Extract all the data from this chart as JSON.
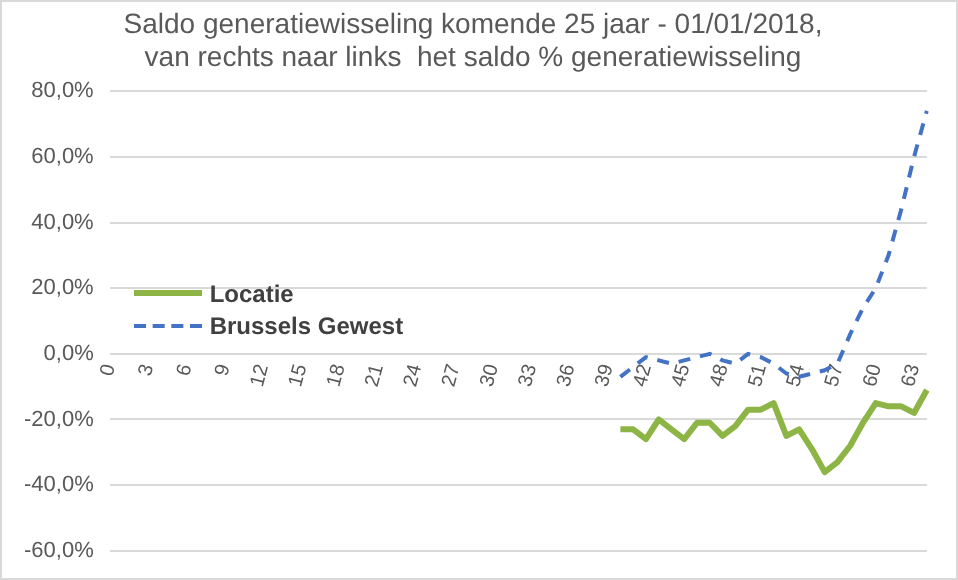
{
  "chart_data": {
    "type": "line",
    "title": "Saldo generatiewisseling komende 25 jaar - 01/01/2018,\nvan rechts naar links  het saldo % generatiewisseling",
    "categories": [
      "0",
      null,
      null,
      "3",
      null,
      null,
      "6",
      null,
      null,
      "9",
      null,
      null,
      "12",
      null,
      null,
      "15",
      null,
      null,
      "18",
      null,
      null,
      "21",
      null,
      null,
      "24",
      null,
      null,
      "27",
      null,
      null,
      "30",
      null,
      null,
      "33",
      null,
      null,
      "36",
      null,
      null,
      "39",
      null,
      null,
      "42",
      null,
      null,
      "45",
      null,
      null,
      "48",
      null,
      null,
      "51",
      null,
      null,
      "54",
      null,
      null,
      "57",
      null,
      null,
      "60",
      null,
      null,
      "63",
      null
    ],
    "series": [
      {
        "name": "Locatie",
        "color": "#8db545",
        "line_style": "solid",
        "values": [
          null,
          null,
          null,
          null,
          null,
          null,
          null,
          null,
          null,
          null,
          null,
          null,
          null,
          null,
          null,
          null,
          null,
          null,
          null,
          null,
          null,
          null,
          null,
          null,
          null,
          null,
          null,
          null,
          null,
          null,
          null,
          null,
          null,
          null,
          null,
          null,
          null,
          null,
          null,
          null,
          -23,
          -23,
          -26,
          -20,
          -23,
          -26,
          -21,
          -21,
          -25,
          -22,
          -17,
          -17,
          -15,
          -25,
          -23,
          -29,
          -36,
          -33,
          -28,
          -21,
          -15,
          -16,
          -16,
          -18,
          -11
        ]
      },
      {
        "name": "Brussels Gewest",
        "color": "#4472c4",
        "line_style": "dashed",
        "values": [
          null,
          null,
          null,
          null,
          null,
          null,
          null,
          null,
          null,
          null,
          null,
          null,
          null,
          null,
          null,
          null,
          null,
          null,
          null,
          null,
          null,
          null,
          null,
          null,
          null,
          null,
          null,
          null,
          null,
          null,
          null,
          null,
          null,
          null,
          null,
          null,
          null,
          null,
          null,
          null,
          -7,
          -4,
          -1,
          -2,
          -3,
          -2,
          -1,
          0,
          -2,
          -3,
          0,
          -1,
          -3,
          -6,
          -7,
          -6,
          -5,
          -3,
          6,
          14,
          20,
          30,
          44,
          60,
          74
        ]
      }
    ],
    "ylim": [
      -60,
      80
    ],
    "yticks": [
      {
        "value": -60,
        "label": "-60,0%"
      },
      {
        "value": -40,
        "label": "-40,0%"
      },
      {
        "value": -20,
        "label": "-20,0%"
      },
      {
        "value": 0,
        "label": "0,0%"
      },
      {
        "value": 20,
        "label": "20,0%"
      },
      {
        "value": 40,
        "label": "40,0%"
      },
      {
        "value": 60,
        "label": "60,0%"
      },
      {
        "value": 80,
        "label": "80,0%"
      }
    ],
    "grid": "y",
    "legend": "left",
    "marker": "none"
  }
}
